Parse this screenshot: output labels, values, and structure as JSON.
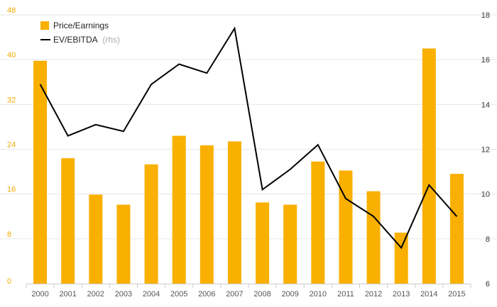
{
  "chart_data": {
    "type": "bar+line",
    "categories": [
      "2000",
      "2001",
      "2002",
      "2003",
      "2004",
      "2005",
      "2006",
      "2007",
      "2008",
      "2009",
      "2010",
      "2011",
      "2012",
      "2013",
      "2014",
      "2015"
    ],
    "series": [
      {
        "name": "Price/Earnings",
        "type": "bar",
        "axis": "left",
        "color": "#F9B000",
        "values": [
          39.8,
          22.4,
          15.9,
          14.1,
          21.3,
          26.4,
          24.7,
          25.4,
          14.5,
          14.1,
          21.8,
          20.2,
          16.5,
          9.1,
          42.0,
          19.6
        ]
      },
      {
        "name": "EV/EBITDA",
        "type": "line",
        "axis": "right",
        "color": "#000000",
        "values": [
          14.9,
          12.6,
          13.1,
          12.8,
          14.9,
          15.8,
          15.4,
          17.4,
          10.2,
          11.1,
          12.2,
          9.8,
          9.0,
          7.6,
          10.4,
          9.0
        ]
      }
    ],
    "legend": [
      {
        "label": "Price/Earnings",
        "note": ""
      },
      {
        "label": "EV/EBITDA",
        "note": "(rhs)"
      }
    ],
    "left_axis": {
      "ticks": [
        "0",
        "8",
        "16",
        "24",
        "32",
        "40",
        "48"
      ],
      "ylim": [
        0,
        48
      ],
      "tick_color": "#F2A900"
    },
    "right_axis": {
      "ticks": [
        "6",
        "8",
        "10",
        "12",
        "14",
        "16",
        "18"
      ],
      "ylim": [
        6,
        18
      ],
      "tick_color": "#333333"
    },
    "grid": true,
    "grid_color": "#e6e6e6",
    "legend_position": "top-left"
  }
}
